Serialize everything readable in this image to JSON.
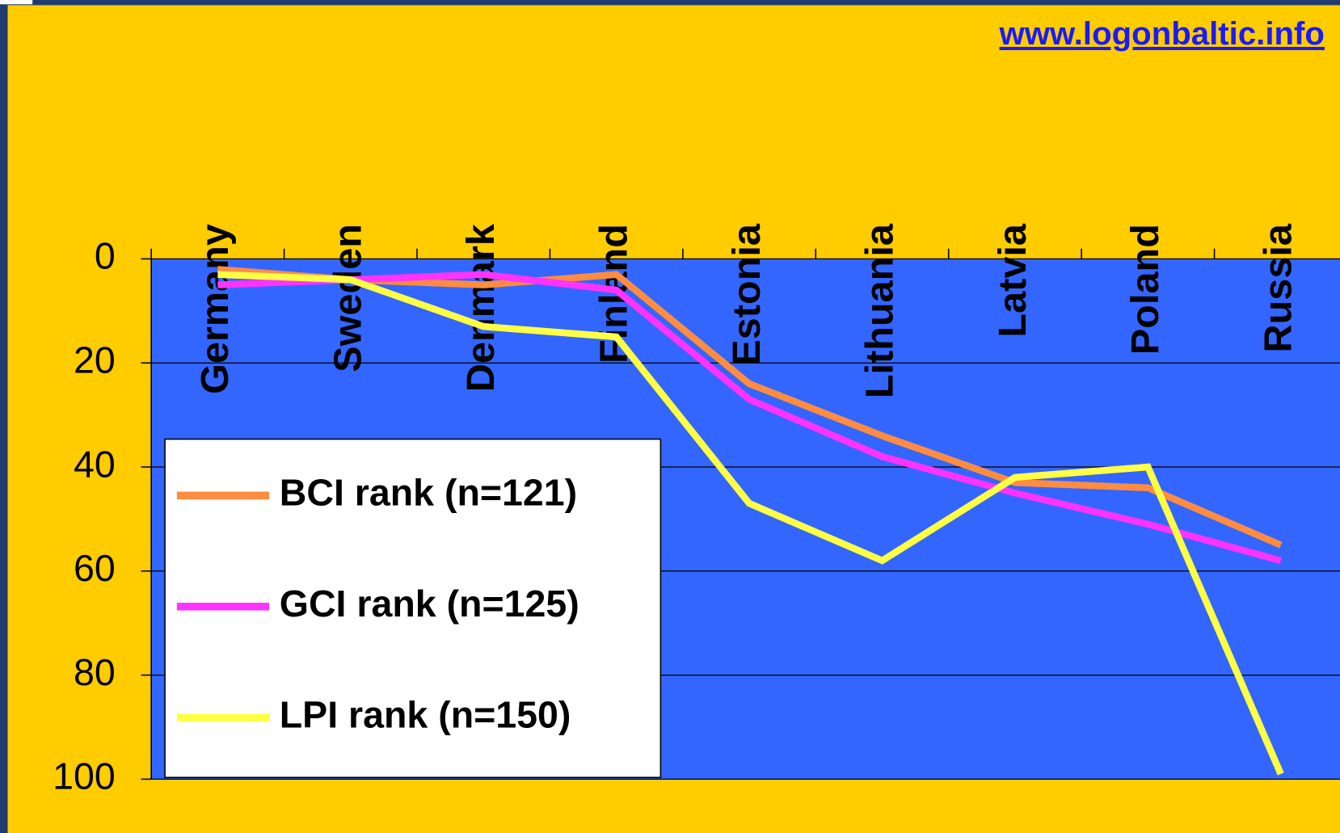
{
  "chart_data": {
    "type": "line",
    "url": "www.logonbaltic.info",
    "categories": [
      "Germany",
      "Sweden",
      "Denmark",
      "Finland",
      "Estonia",
      "Lithuania",
      "Latvia",
      "Poland",
      "Russia"
    ],
    "series": [
      {
        "name": "BCI rank (n=121)",
        "color": "#ff8c40",
        "values": [
          2,
          4,
          5,
          3,
          24,
          34,
          43,
          44,
          55
        ]
      },
      {
        "name": "GCI rank (n=125)",
        "color": "#ff33ff",
        "values": [
          5,
          4,
          3,
          6,
          27,
          38,
          45,
          51,
          58
        ]
      },
      {
        "name": "LPI rank (n=150)",
        "color": "#ffff44",
        "values": [
          3,
          4,
          13,
          15,
          47,
          58,
          42,
          40,
          99
        ]
      }
    ],
    "ylim": [
      0,
      100
    ],
    "yticks": [
      0,
      20,
      40,
      60,
      80,
      100
    ],
    "y_inverted": true,
    "grid": true,
    "legend": "center left"
  }
}
